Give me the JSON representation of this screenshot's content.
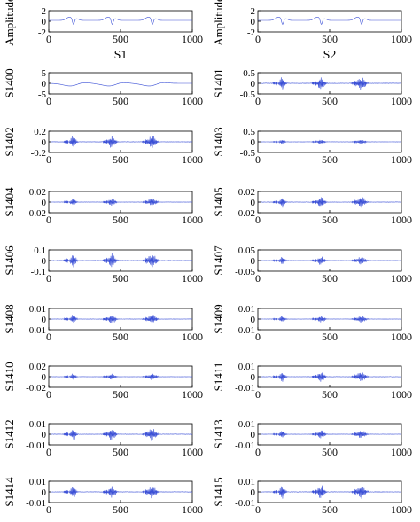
{
  "figure": {
    "description_axis_color": "#000000",
    "line_color": "#3a4fd6"
  },
  "chart_data": [
    {
      "type": "line",
      "ylabel": "Amplitude",
      "xlabel": "S1",
      "xlim": [
        0,
        1000
      ],
      "ylim": [
        -2,
        2
      ],
      "xticks": [
        "0",
        "500",
        "1000"
      ],
      "yticks": [
        "2",
        "0",
        "-2"
      ],
      "signal": "ecg",
      "amp": 0.55,
      "x": [
        0,
        1000
      ],
      "y": [
        -2,
        2
      ]
    },
    {
      "type": "line",
      "ylabel": "Amplitude",
      "xlabel": "S2",
      "xlim": [
        0,
        1000
      ],
      "ylim": [
        -2,
        2
      ],
      "xticks": [
        "0",
        "500",
        "1000"
      ],
      "yticks": [
        "2",
        "0",
        "-2"
      ],
      "signal": "ecg",
      "amp": 0.55,
      "x": [
        0,
        1000
      ],
      "y": [
        -2,
        2
      ]
    },
    {
      "type": "line",
      "ylabel": "S1400",
      "xlabel": "",
      "xlim": [
        0,
        1000
      ],
      "ylim": [
        -5,
        5
      ],
      "xticks": [
        "0",
        "500",
        "1000"
      ],
      "yticks": [
        "5",
        "0",
        "-5"
      ],
      "signal": "smooth",
      "amp": 0.3
    },
    {
      "type": "line",
      "ylabel": "S1401",
      "xlabel": "",
      "xlim": [
        0,
        1000
      ],
      "ylim": [
        -0.5,
        0.5
      ],
      "xticks": [
        "0",
        "500",
        "1000"
      ],
      "yticks": [
        "0.5",
        "0",
        "-0.5"
      ],
      "signal": "burst",
      "amp": 0.55
    },
    {
      "type": "line",
      "ylabel": "S1402",
      "xlabel": "",
      "xlim": [
        0,
        1000
      ],
      "ylim": [
        -0.2,
        0.2
      ],
      "xticks": [
        "0",
        "500",
        "1000"
      ],
      "yticks": [
        "0.2",
        "0",
        "-0.2"
      ],
      "signal": "burst",
      "amp": 0.5
    },
    {
      "type": "line",
      "ylabel": "S1403",
      "xlabel": "",
      "xlim": [
        0,
        1000
      ],
      "ylim": [
        -0.5,
        0.5
      ],
      "xticks": [
        "0",
        "500",
        "1000"
      ],
      "yticks": [
        "0.5",
        "0",
        "-0.5"
      ],
      "signal": "burst",
      "amp": 0.2
    },
    {
      "type": "line",
      "ylabel": "S1404",
      "xlabel": "",
      "xlim": [
        0,
        1000
      ],
      "ylim": [
        -0.02,
        0.02
      ],
      "xticks": [
        "0",
        "500",
        "1000"
      ],
      "yticks": [
        "0.02",
        "0",
        "-0.02"
      ],
      "signal": "burst",
      "amp": 0.35
    },
    {
      "type": "line",
      "ylabel": "S1405",
      "xlabel": "",
      "xlim": [
        0,
        1000
      ],
      "ylim": [
        -0.02,
        0.02
      ],
      "xticks": [
        "0",
        "500",
        "1000"
      ],
      "yticks": [
        "0.02",
        "0",
        "-0.02"
      ],
      "signal": "burst",
      "amp": 0.45
    },
    {
      "type": "line",
      "ylabel": "S1406",
      "xlabel": "",
      "xlim": [
        0,
        1000
      ],
      "ylim": [
        -0.1,
        0.1
      ],
      "xticks": [
        "0",
        "500",
        "1000"
      ],
      "yticks": [
        "0.1",
        "0",
        "-0.1"
      ],
      "signal": "burst",
      "amp": 0.6
    },
    {
      "type": "line",
      "ylabel": "S1407",
      "xlabel": "",
      "xlim": [
        0,
        1000
      ],
      "ylim": [
        -0.05,
        0.05
      ],
      "xticks": [
        "0",
        "500",
        "1000"
      ],
      "yticks": [
        "0.05",
        "0",
        "-0.05"
      ],
      "signal": "burst",
      "amp": 0.35
    },
    {
      "type": "line",
      "ylabel": "S1408",
      "xlabel": "",
      "xlim": [
        0,
        1000
      ],
      "ylim": [
        -0.01,
        0.01
      ],
      "xticks": [
        "0",
        "500",
        "1000"
      ],
      "yticks": [
        "0.01",
        "0",
        "-0.01"
      ],
      "signal": "burst",
      "amp": 0.4
    },
    {
      "type": "line",
      "ylabel": "S1409",
      "xlabel": "",
      "xlim": [
        0,
        1000
      ],
      "ylim": [
        -0.01,
        0.01
      ],
      "xticks": [
        "0",
        "500",
        "1000"
      ],
      "yticks": [
        "0.01",
        "0",
        "-0.01"
      ],
      "signal": "burst",
      "amp": 0.3
    },
    {
      "type": "line",
      "ylabel": "S1410",
      "xlabel": "",
      "xlim": [
        0,
        1000
      ],
      "ylim": [
        -0.02,
        0.02
      ],
      "xticks": [
        "0",
        "500",
        "1000"
      ],
      "yticks": [
        "0.02",
        "0",
        "-0.02"
      ],
      "signal": "burst",
      "amp": 0.25
    },
    {
      "type": "line",
      "ylabel": "S1411",
      "xlabel": "",
      "xlim": [
        0,
        1000
      ],
      "ylim": [
        -0.01,
        0.01
      ],
      "xticks": [
        "0",
        "500",
        "1000"
      ],
      "yticks": [
        "0.01",
        "0",
        "-0.01"
      ],
      "signal": "burst",
      "amp": 0.45
    },
    {
      "type": "line",
      "ylabel": "S1412",
      "xlabel": "",
      "xlim": [
        0,
        1000
      ],
      "ylim": [
        -0.01,
        0.01
      ],
      "xticks": [
        "0",
        "500",
        "1000"
      ],
      "yticks": [
        "0.01",
        "0",
        "-0.01"
      ],
      "signal": "burst",
      "amp": 0.5
    },
    {
      "type": "line",
      "ylabel": "S1413",
      "xlabel": "",
      "xlim": [
        0,
        1000
      ],
      "ylim": [
        -0.01,
        0.01
      ],
      "xticks": [
        "0",
        "500",
        "1000"
      ],
      "yticks": [
        "0.01",
        "0",
        "-0.01"
      ],
      "signal": "burst",
      "amp": 0.35
    },
    {
      "type": "line",
      "ylabel": "S1414",
      "xlabel": "",
      "xlim": [
        0,
        1000
      ],
      "ylim": [
        -0.01,
        0.01
      ],
      "xticks": [
        "0",
        "500",
        "1000"
      ],
      "yticks": [
        "0.01",
        "0",
        "-0.01"
      ],
      "signal": "burst",
      "amp": 0.5
    },
    {
      "type": "line",
      "ylabel": "S1415",
      "xlabel": "",
      "xlim": [
        0,
        1000
      ],
      "ylim": [
        -0.01,
        0.01
      ],
      "xticks": [
        "0",
        "500",
        "1000"
      ],
      "yticks": [
        "0.01",
        "0",
        "-0.01"
      ],
      "signal": "burst",
      "amp": 0.55
    }
  ]
}
